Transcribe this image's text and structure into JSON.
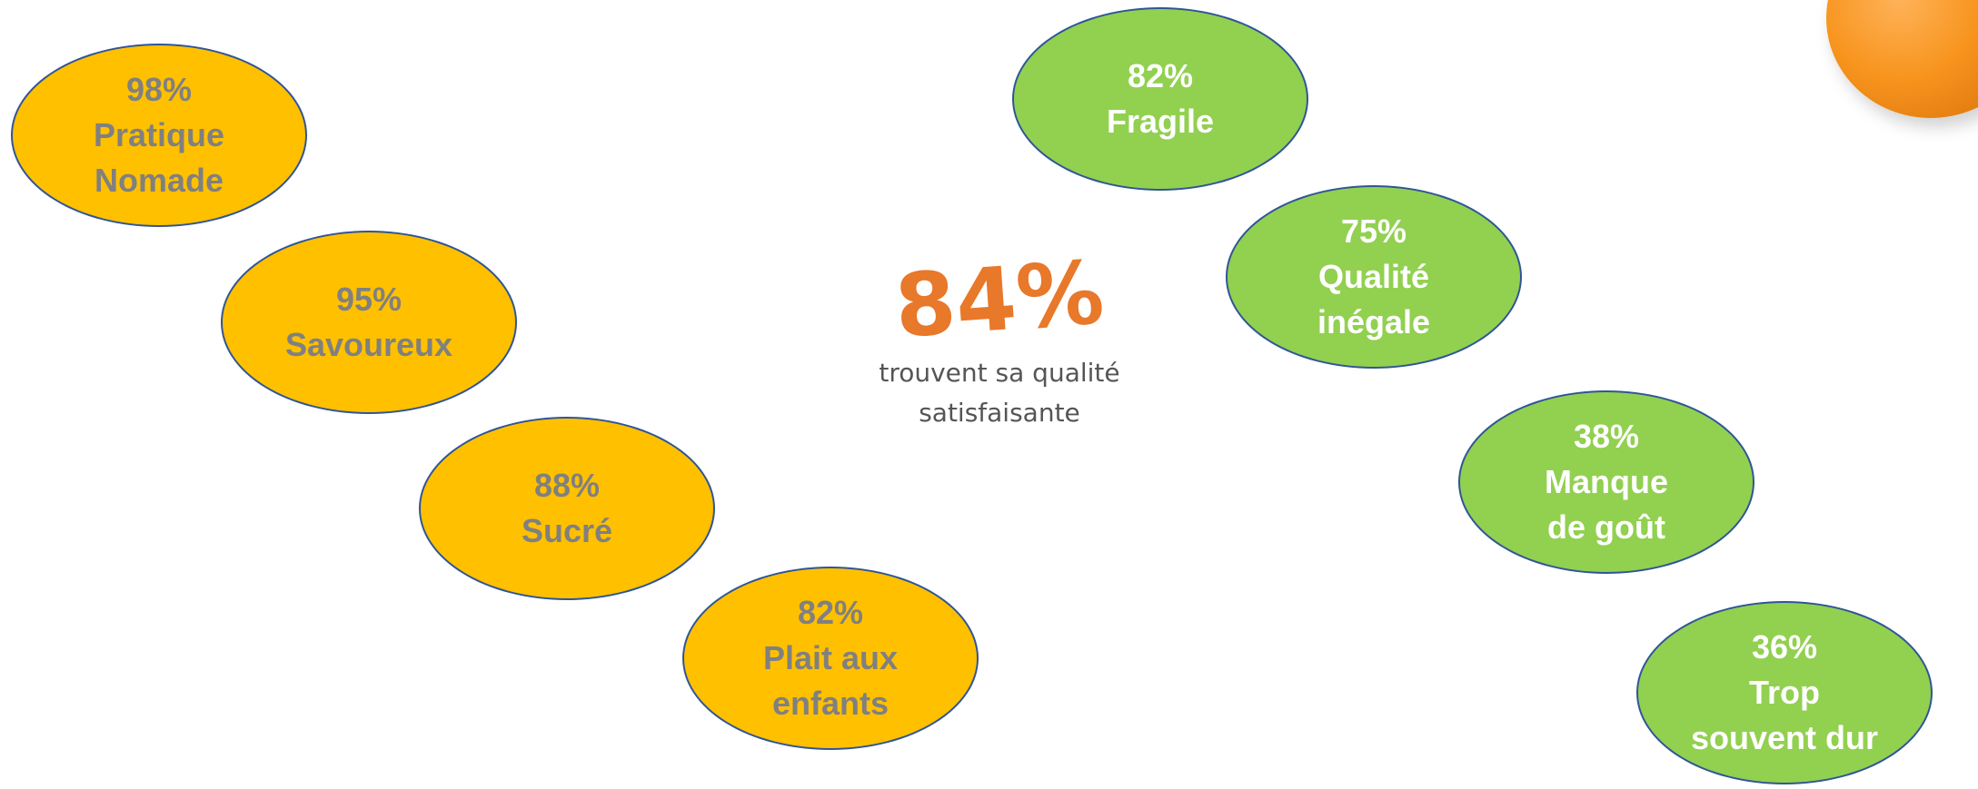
{
  "positives": [
    {
      "pct": "98%",
      "lines": [
        "Pratique",
        "Nomade"
      ]
    },
    {
      "pct": "95%",
      "lines": [
        "Savoureux"
      ]
    },
    {
      "pct": "88%",
      "lines": [
        "Sucré"
      ]
    },
    {
      "pct": "82%",
      "lines": [
        "Plait aux",
        "enfants"
      ]
    }
  ],
  "negatives": [
    {
      "pct": "82%",
      "lines": [
        "Fragile"
      ]
    },
    {
      "pct": "75%",
      "lines": [
        "Qualité",
        "inégale"
      ]
    },
    {
      "pct": "38%",
      "lines": [
        "Manque",
        "de goût"
      ]
    },
    {
      "pct": "36%",
      "lines": [
        "Trop",
        "souvent dur"
      ]
    }
  ],
  "center": {
    "pct": "84%",
    "caption_line1": "trouvent sa qualité",
    "caption_line2": "satisfaisante"
  },
  "colors": {
    "positive_fill": "#ffc000",
    "positive_text": "#808080",
    "negative_fill": "#92d050",
    "negative_text": "#ffffff",
    "outline": "#2f5597",
    "center_pct": "#e8782a"
  },
  "decor": {
    "corner_image": "apricot-image"
  }
}
